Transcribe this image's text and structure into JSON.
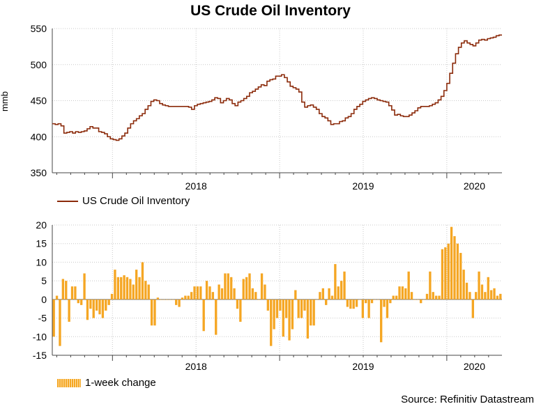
{
  "title": "US Crude Oil Inventory",
  "source": "Source: Refinitiv Datastream",
  "colors": {
    "line": "#8b2a0a",
    "bar": "#f5a623",
    "grid": "#c8c8c8"
  },
  "chart_data": [
    {
      "type": "line",
      "ylabel": "mmb",
      "ylim": [
        350,
        550
      ],
      "yticks": [
        350,
        400,
        450,
        500,
        550
      ],
      "xticks": [
        "2018",
        "2019",
        "2020"
      ],
      "x_year_bounds": [
        2017.64,
        2020.33
      ],
      "legend": "US Crude Oil Inventory",
      "series": [
        {
          "name": "US Crude Oil Inventory",
          "values": [
            418,
            417,
            418,
            415,
            405,
            406,
            407,
            405,
            407,
            406,
            407,
            408,
            411,
            414,
            412,
            412,
            407,
            406,
            404,
            400,
            397,
            396,
            395,
            397,
            401,
            405,
            412,
            418,
            422,
            425,
            429,
            432,
            438,
            443,
            449,
            451,
            450,
            446,
            444,
            443,
            442,
            442,
            442,
            442,
            442,
            442,
            442,
            441,
            438,
            443,
            445,
            446,
            447,
            448,
            449,
            451,
            454,
            453,
            447,
            450,
            453,
            451,
            446,
            443,
            448,
            450,
            453,
            456,
            461,
            463,
            466,
            469,
            472,
            471,
            477,
            479,
            480,
            484,
            484,
            486,
            482,
            476,
            470,
            468,
            466,
            462,
            448,
            441,
            443,
            444,
            441,
            438,
            432,
            428,
            426,
            422,
            417,
            418,
            418,
            421,
            422,
            426,
            428,
            432,
            438,
            442,
            445,
            449,
            451,
            453,
            454,
            453,
            451,
            450,
            449,
            448,
            443,
            437,
            430,
            431,
            429,
            428,
            428,
            430,
            433,
            436,
            440,
            442,
            442,
            442,
            443,
            445,
            447,
            451,
            456,
            464,
            474,
            488,
            502,
            515,
            524,
            530,
            533,
            530,
            528,
            526,
            530,
            534,
            535,
            534,
            536,
            537,
            538,
            540,
            541
          ]
        }
      ]
    },
    {
      "type": "bar",
      "ylim": [
        -15,
        20
      ],
      "yticks": [
        -15,
        -10,
        -5,
        0,
        5,
        10,
        15,
        20
      ],
      "xticks": [
        "2018",
        "2019",
        "2020"
      ],
      "x_year_bounds": [
        2017.64,
        2020.33
      ],
      "legend": "1-week change",
      "series": [
        {
          "name": "1-week change",
          "values": [
            -10,
            1,
            -12.5,
            5.5,
            5,
            -6,
            3.5,
            3.5,
            -1,
            -1.5,
            7,
            -5.5,
            -2.5,
            -5,
            -3,
            -4,
            -5,
            -3,
            -1.5,
            1.5,
            8,
            6,
            6,
            6.5,
            6,
            5.5,
            4,
            8,
            6,
            10,
            5,
            4,
            -7,
            -7,
            0.5,
            0,
            0,
            0,
            0,
            0,
            -1.5,
            -2,
            0.5,
            1,
            1,
            2,
            3.5,
            3.5,
            3.5,
            -8.5,
            5,
            3.5,
            2,
            -9.5,
            4,
            3,
            7,
            7,
            6,
            3,
            -2.5,
            -6,
            5.5,
            6,
            7,
            3,
            2,
            0,
            7,
            4,
            -3,
            -12.5,
            -8,
            -5,
            -3,
            -10,
            -5,
            -11,
            -8,
            2.5,
            -5,
            -5,
            -3,
            -10.5,
            -7,
            -7,
            0,
            2,
            3,
            -1.5,
            3,
            1,
            9.5,
            3.5,
            5,
            7.5,
            -2,
            -2.5,
            -2.5,
            -2,
            0,
            -5,
            -1,
            -5,
            -1,
            0,
            0,
            -11.5,
            -2,
            -5,
            -1,
            1,
            1,
            3.5,
            3.5,
            3,
            7.5,
            2,
            0,
            0,
            -1,
            0,
            1.5,
            7.5,
            2,
            1,
            1,
            13.5,
            14,
            15,
            19.5,
            17,
            15,
            12.5,
            8,
            4.5,
            2,
            -5,
            2,
            7.5,
            4,
            2,
            6,
            2.5,
            3,
            1,
            1.5
          ]
        }
      ]
    }
  ]
}
